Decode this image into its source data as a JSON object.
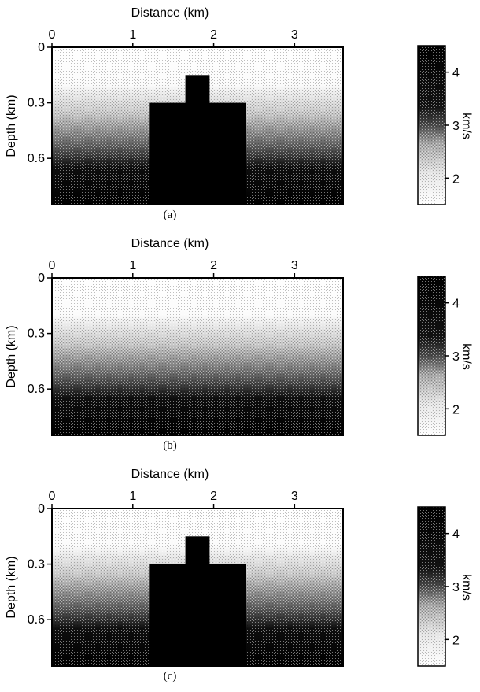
{
  "chart_data": [
    {
      "type": "heatmap",
      "panel_label": "(a)",
      "xlabel": "Distance (km)",
      "ylabel": "Depth (km)",
      "colorbar_label": "km/s",
      "xticks": [
        0,
        1,
        2,
        3
      ],
      "yticks": [
        0,
        0.3,
        0.6
      ],
      "colorbar_ticks": [
        2,
        3,
        4
      ],
      "xlim": [
        0,
        3.6
      ],
      "ylim": [
        0,
        0.85
      ],
      "clim": [
        1.5,
        4.5
      ],
      "background_gradient": {
        "top_depth_km": 0.2,
        "bottom_depth_km": 0.65
      },
      "anomaly_blocks": [
        {
          "x": [
            1.65,
            1.95
          ],
          "depth": [
            0.15,
            0.85
          ],
          "velocity": 4.5
        },
        {
          "x": [
            1.2,
            2.4
          ],
          "depth": [
            0.3,
            0.85
          ],
          "velocity": 4.5
        }
      ]
    },
    {
      "type": "heatmap",
      "panel_label": "(b)",
      "xlabel": "Distance (km)",
      "ylabel": "Depth (km)",
      "colorbar_label": "km/s",
      "xticks": [
        0,
        1,
        2,
        3
      ],
      "yticks": [
        0,
        0.3,
        0.6
      ],
      "colorbar_ticks": [
        2,
        3,
        4
      ],
      "xlim": [
        0,
        3.6
      ],
      "ylim": [
        0,
        0.85
      ],
      "clim": [
        1.5,
        4.5
      ],
      "background_gradient": {
        "top_depth_km": 0.2,
        "bottom_depth_km": 0.65
      },
      "anomaly_blocks": []
    },
    {
      "type": "heatmap",
      "panel_label": "(c)",
      "xlabel": "Distance (km)",
      "ylabel": "Depth (km)",
      "colorbar_label": "km/s",
      "xticks": [
        0,
        1,
        2,
        3
      ],
      "yticks": [
        0,
        0.3,
        0.6
      ],
      "colorbar_ticks": [
        2,
        3,
        4
      ],
      "xlim": [
        0,
        3.6
      ],
      "ylim": [
        0,
        0.85
      ],
      "clim": [
        1.5,
        4.5
      ],
      "background_gradient": {
        "top_depth_km": 0.2,
        "bottom_depth_km": 0.65
      },
      "anomaly_blocks": [
        {
          "x": [
            1.65,
            1.95
          ],
          "depth": [
            0.15,
            0.85
          ],
          "velocity": 4.5
        },
        {
          "x": [
            1.2,
            2.4
          ],
          "depth": [
            0.3,
            0.85
          ],
          "velocity": 4.5
        }
      ]
    }
  ]
}
